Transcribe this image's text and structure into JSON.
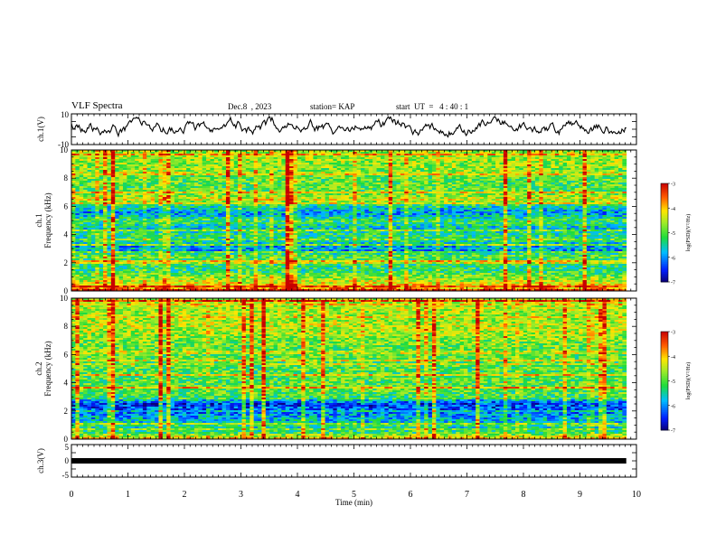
{
  "header": {
    "title": "VLF Spectra",
    "date": "Dec.8  , 2023",
    "station": "station= KAP",
    "start": "start  UT  =   4 : 40 : 1"
  },
  "chart_data": [
    {
      "type": "line",
      "name": "ch1-waveform",
      "ylabel": "ch.1(V)",
      "ylim": [
        -10,
        10
      ],
      "yticks": [
        "10",
        "-10"
      ],
      "xlim": [
        0,
        10
      ],
      "x_extent": [
        0,
        9.82
      ],
      "approx_range": [
        -7,
        8
      ]
    },
    {
      "type": "heatmap",
      "name": "ch1-spectrogram",
      "ylabel": "ch.1\nFrequency (kHz)",
      "ylim": [
        0,
        10
      ],
      "yticks": [
        "0",
        "2",
        "4",
        "6",
        "8",
        "10"
      ],
      "xlim": [
        0,
        10
      ],
      "x_extent": [
        0,
        9.82
      ],
      "colorbar": {
        "label": "log(PSD)(V²/Hz)",
        "range": [
          -7,
          -3
        ],
        "ticks": [
          "-3",
          "-4",
          "-5",
          "-6",
          "-7"
        ]
      },
      "approx_levels_kHz": [
        [
          0.0,
          -3.6
        ],
        [
          0.5,
          -4.2
        ],
        [
          1.0,
          -4.8
        ],
        [
          1.5,
          -5.3
        ],
        [
          2.0,
          -5.2
        ],
        [
          2.5,
          -5.0
        ],
        [
          3.0,
          -6.2
        ],
        [
          3.5,
          -5.4
        ],
        [
          4.0,
          -5.3
        ],
        [
          4.5,
          -5.6
        ],
        [
          5.0,
          -5.1
        ],
        [
          5.5,
          -6.0
        ],
        [
          6.0,
          -5.5
        ],
        [
          6.5,
          -4.3
        ],
        [
          7.0,
          -5.0
        ],
        [
          7.5,
          -5.0
        ],
        [
          8.0,
          -4.9
        ],
        [
          8.5,
          -4.8
        ],
        [
          9.0,
          -4.7
        ],
        [
          9.5,
          -4.6
        ],
        [
          10.0,
          -4.6
        ]
      ]
    },
    {
      "type": "heatmap",
      "name": "ch2-spectrogram",
      "ylabel": "ch.2\nFrequency (kHz)",
      "ylim": [
        0,
        10
      ],
      "yticks": [
        "0",
        "2",
        "4",
        "6",
        "8",
        "10"
      ],
      "xlim": [
        0,
        10
      ],
      "x_extent": [
        0,
        9.82
      ],
      "colorbar": {
        "label": "log(PSD)(V²/Hz)",
        "range": [
          -7,
          -3
        ],
        "ticks": [
          "-3",
          "-4",
          "-5",
          "-6",
          "-7"
        ]
      },
      "approx_levels_kHz": [
        [
          0.0,
          -4.0
        ],
        [
          0.5,
          -5.2
        ],
        [
          1.0,
          -5.6
        ],
        [
          1.5,
          -5.8
        ],
        [
          2.0,
          -6.2
        ],
        [
          2.5,
          -6.4
        ],
        [
          3.0,
          -5.2
        ],
        [
          3.5,
          -4.9
        ],
        [
          4.0,
          -5.0
        ],
        [
          4.5,
          -5.0
        ],
        [
          5.0,
          -5.0
        ],
        [
          5.5,
          -5.0
        ],
        [
          6.0,
          -4.9
        ],
        [
          6.5,
          -4.9
        ],
        [
          7.0,
          -4.8
        ],
        [
          7.5,
          -4.6
        ],
        [
          8.0,
          -4.5
        ],
        [
          8.5,
          -4.6
        ],
        [
          9.0,
          -4.6
        ],
        [
          9.5,
          -4.5
        ],
        [
          10.0,
          -4.5
        ]
      ]
    },
    {
      "type": "line",
      "name": "ch3-waveform",
      "ylabel": "ch.3(V)",
      "ylim": [
        -5,
        5
      ],
      "yticks": [
        "5",
        "0",
        "-5"
      ],
      "xlim": [
        0,
        10
      ],
      "x_extent": [
        0,
        9.82
      ],
      "approx_value": 0
    }
  ],
  "xaxis": {
    "label": "Time  (min)",
    "ticks": [
      "0",
      "1",
      "2",
      "3",
      "4",
      "5",
      "6",
      "7",
      "8",
      "9",
      "10"
    ]
  }
}
